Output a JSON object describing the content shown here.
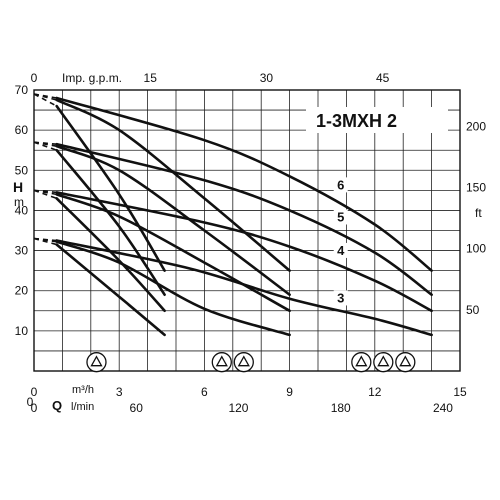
{
  "chart_data": {
    "type": "line",
    "model": "1-3MXH 2",
    "axes": {
      "q_m3h": {
        "unit": "m³/h",
        "range": [
          0,
          15
        ],
        "ticks": [
          0,
          3,
          6,
          9,
          12,
          15
        ]
      },
      "q_lmin": {
        "label": "Q",
        "unit": "l/min",
        "ticks": [
          0,
          60,
          120,
          180,
          240
        ]
      },
      "q_gpm": {
        "unit": "Imp. g.p.m.",
        "ticks": [
          0,
          15,
          30,
          45
        ]
      },
      "h_m": {
        "label": "H",
        "unit": "m",
        "range": [
          0,
          70
        ],
        "ticks": [
          10,
          20,
          30,
          40,
          50,
          60,
          70
        ]
      },
      "h_ft": {
        "unit": "ft",
        "ticks": [
          50,
          100,
          150,
          200
        ]
      }
    },
    "grid": true,
    "series": [
      {
        "name": "3",
        "shutoff_head": 33,
        "curves": [
          {
            "points": [
              [
                0.8,
                32.5
              ],
              [
                5.5,
                25.5
              ],
              [
                9,
                18
              ],
              [
                12,
                13
              ],
              [
                14,
                9
              ]
            ]
          },
          {
            "points": [
              [
                0.8,
                32.2
              ],
              [
                3,
                27
              ],
              [
                6,
                15.5
              ],
              [
                9,
                9
              ]
            ]
          },
          {
            "points": [
              [
                0.8,
                31.5
              ],
              [
                3,
                18.5
              ],
              [
                4.6,
                9
              ]
            ]
          }
        ]
      },
      {
        "name": "4",
        "shutoff_head": 45,
        "curves": [
          {
            "points": [
              [
                0.8,
                44.5
              ],
              [
                6,
                37
              ],
              [
                9,
                31
              ],
              [
                12,
                22.5
              ],
              [
                14,
                15
              ]
            ]
          },
          {
            "points": [
              [
                0.8,
                44
              ],
              [
                3,
                38.5
              ],
              [
                6,
                27
              ],
              [
                9,
                15
              ]
            ]
          },
          {
            "points": [
              [
                0.8,
                43
              ],
              [
                3,
                27.5
              ],
              [
                4.6,
                15
              ]
            ]
          }
        ]
      },
      {
        "name": "5",
        "shutoff_head": 57,
        "curves": [
          {
            "points": [
              [
                0.8,
                56.5
              ],
              [
                6,
                47.5
              ],
              [
                9,
                40
              ],
              [
                12,
                29.5
              ],
              [
                14,
                19
              ]
            ]
          },
          {
            "points": [
              [
                0.8,
                56
              ],
              [
                3,
                50
              ],
              [
                6,
                35
              ],
              [
                9,
                19
              ]
            ]
          },
          {
            "points": [
              [
                0.8,
                55
              ],
              [
                3,
                36
              ],
              [
                4.6,
                19
              ]
            ]
          }
        ]
      },
      {
        "name": "6",
        "shutoff_head": 69,
        "curves": [
          {
            "points": [
              [
                0.8,
                68
              ],
              [
                6,
                57.5
              ],
              [
                9,
                48.5
              ],
              [
                12,
                36.5
              ],
              [
                14,
                25
              ]
            ]
          },
          {
            "points": [
              [
                0.8,
                67.5
              ],
              [
                3,
                60
              ],
              [
                6,
                43
              ],
              [
                9,
                25
              ]
            ]
          },
          {
            "points": [
              [
                0.8,
                66
              ],
              [
                3,
                44
              ],
              [
                4.6,
                25
              ]
            ]
          }
        ]
      }
    ],
    "symbol_groups": [
      {
        "count": 1,
        "q_center": 2.2
      },
      {
        "count": 2,
        "q_center": 7.0
      },
      {
        "count": 3,
        "q_center": 12.3
      }
    ]
  }
}
